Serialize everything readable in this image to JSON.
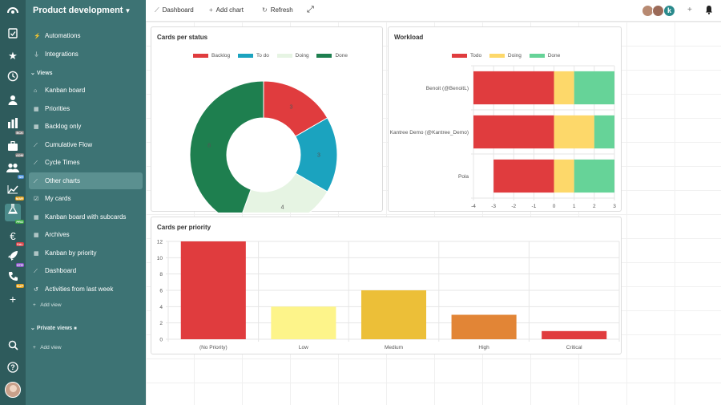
{
  "topbar": {
    "dashboard_label": "Dashboard",
    "add_chart_label": "Add chart",
    "refresh_label": "Refresh",
    "user_initial": "k"
  },
  "sidebar": {
    "board_title": "Product development",
    "items": [
      {
        "label": "Automations",
        "icon": "bolt-icon"
      },
      {
        "label": "Integrations",
        "icon": "plug-icon"
      }
    ],
    "views_section": "Views",
    "views": [
      {
        "label": "Kanban board",
        "icon": "home-icon"
      },
      {
        "label": "Priorities",
        "icon": "table-icon"
      },
      {
        "label": "Backlog only",
        "icon": "table-icon"
      },
      {
        "label": "Cumulative Flow",
        "icon": "line-chart-icon"
      },
      {
        "label": "Cycle Times",
        "icon": "line-chart-icon"
      },
      {
        "label": "Other charts",
        "icon": "line-chart-icon",
        "active": true
      },
      {
        "label": "My cards",
        "icon": "checkbox-icon"
      },
      {
        "label": "Kanban board with subcards",
        "icon": "table-icon"
      },
      {
        "label": "Archives",
        "icon": "table-icon"
      },
      {
        "label": "Kanban by priority",
        "icon": "table-icon"
      },
      {
        "label": "Dashboard",
        "icon": "line-chart-icon"
      },
      {
        "label": "Activities from last week",
        "icon": "history-icon"
      }
    ],
    "add_view_label": "Add view",
    "private_section": "Private views",
    "add_private_view_label": "Add view"
  },
  "rail": {
    "badges": [
      "BCK",
      "ADM",
      "SH",
      "MAR",
      "PRO",
      "SAL",
      "STR",
      "SUP"
    ]
  },
  "colors": {
    "red": "#e03c3e",
    "blue": "#1ba3bf",
    "pale_green": "#e6f4e3",
    "dark_green": "#1e7f4f",
    "yellow": "#fdd86a",
    "green": "#66d398",
    "sidebar": "#3d7374",
    "rail": "#2e5b5c"
  },
  "charts": {
    "status": {
      "title": "Cards per status",
      "chart_data": {
        "type": "pie",
        "donut": true,
        "categories": [
          "Backlog",
          "To do",
          "Doing",
          "Done"
        ],
        "values": [
          3,
          3,
          4,
          8
        ],
        "colors": [
          "#e03c3e",
          "#1ba3bf",
          "#e6f4e3",
          "#1e7f4f"
        ]
      }
    },
    "workload": {
      "title": "Workload",
      "chart_data": {
        "type": "bar",
        "orientation": "horizontal",
        "stacked": true,
        "categories": [
          "Benoit (@BenoitL)",
          "Kantree Demo (@Kantree_Demo)",
          "Pola"
        ],
        "series": [
          {
            "name": "Todo",
            "values": [
              -4,
              -4,
              -3
            ],
            "color": "#e03c3e"
          },
          {
            "name": "Doing",
            "values": [
              1,
              2,
              1
            ],
            "color": "#fdd86a"
          },
          {
            "name": "Done",
            "values": [
              2,
              1,
              2
            ],
            "color": "#66d398"
          }
        ],
        "xlim": [
          -4,
          3
        ],
        "xticks": [
          "-4",
          "-3",
          "-2",
          "-1",
          "0",
          "1",
          "2",
          "3"
        ]
      }
    },
    "priority": {
      "title": "Cards per priority",
      "chart_data": {
        "type": "bar",
        "categories": [
          "(No Priority)",
          "Low",
          "Medium",
          "High",
          "Critical"
        ],
        "values": [
          12,
          4,
          6,
          3,
          1
        ],
        "colors": [
          "#e03c3e",
          "#fdf48a",
          "#ecbf38",
          "#e28536",
          "#e03c3e"
        ],
        "ylim": [
          0,
          12
        ],
        "yticks": [
          "0",
          "2",
          "4",
          "6",
          "8",
          "10",
          "12"
        ]
      }
    }
  }
}
